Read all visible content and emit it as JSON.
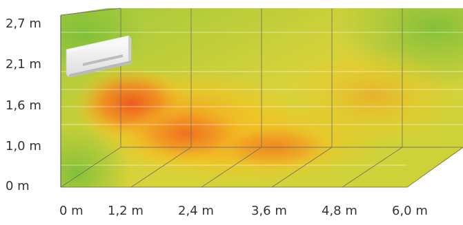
{
  "diagram": {
    "y_axis_labels": [
      "2,7 m",
      "2,1 m",
      "1,6 m",
      "1,0 m",
      "0 m"
    ],
    "x_axis_labels": [
      "0 m",
      "1,2 m",
      "2,4 m",
      "3,6 m",
      "4,8 m",
      "6,0 m"
    ],
    "heat_colors": {
      "hot": "#ee5a1c",
      "warm": "#f39a22",
      "mild": "#f2c322",
      "cool": "#d7d23a",
      "cold": "#84c23a"
    },
    "device": "air-conditioner-icon"
  }
}
